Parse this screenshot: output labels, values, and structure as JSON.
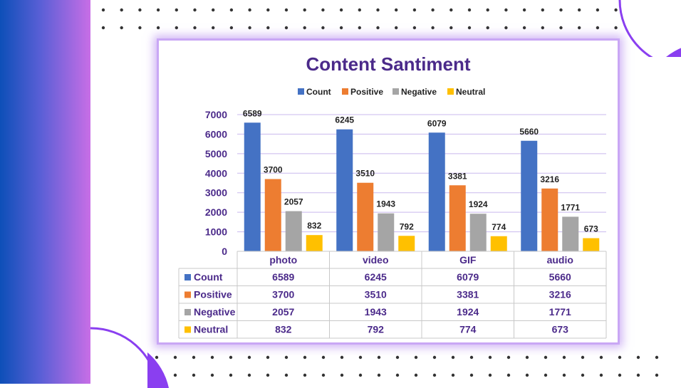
{
  "colors": {
    "count": "#4472c4",
    "positive": "#ed7d31",
    "negative": "#a5a5a5",
    "neutral": "#ffc000",
    "accent_purple": "#7b2ff7",
    "title": "#4b2a8a"
  },
  "chart_data": {
    "type": "bar",
    "title": "Content Santiment",
    "categories": [
      "photo",
      "video",
      "GIF",
      "audio"
    ],
    "series": [
      {
        "name": "Count",
        "values": [
          6589,
          6245,
          6079,
          5660
        ]
      },
      {
        "name": "Positive",
        "values": [
          3700,
          3510,
          3381,
          3216
        ]
      },
      {
        "name": "Negative",
        "values": [
          2057,
          1943,
          1924,
          1771
        ]
      },
      {
        "name": "Neutral",
        "values": [
          832,
          792,
          774,
          673
        ]
      }
    ],
    "ylim": [
      0,
      7000
    ],
    "yticks": [
      "0",
      "1000",
      "2000",
      "3000",
      "4000",
      "5000",
      "6000",
      "7000"
    ],
    "grid": true,
    "legend": "top",
    "data_table": true
  }
}
